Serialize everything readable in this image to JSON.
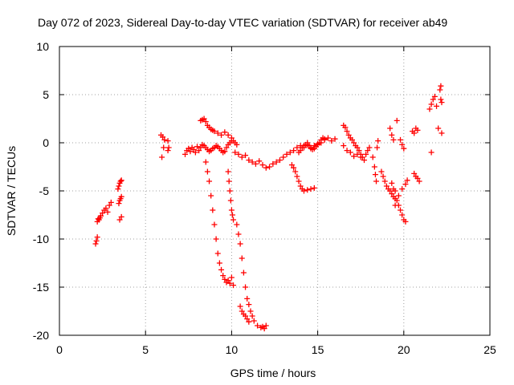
{
  "chart_data": {
    "type": "scatter",
    "title": "Day 072 of 2023, Sidereal Day-to-day VTEC variation (SDTVAR) for receiver ab49",
    "xlabel": "GPS time / hours",
    "ylabel": "SDTVAR / TECUs",
    "xlim": [
      0,
      25
    ],
    "ylim": [
      -20,
      10
    ],
    "xticks": [
      "0",
      "5",
      "10",
      "15",
      "20",
      "25"
    ],
    "yticks": [
      "-20",
      "-15",
      "-10",
      "-5",
      "0",
      "5",
      "10"
    ],
    "grid": true,
    "marker": "+",
    "series": [
      {
        "name": "SDTVAR",
        "color": "#ff0000",
        "x": [
          2.1,
          2.15,
          2.2,
          2.2,
          2.25,
          2.3,
          2.35,
          2.4,
          2.5,
          2.6,
          2.7,
          2.8,
          2.9,
          3.0,
          3.4,
          3.45,
          3.5,
          3.55,
          3.6,
          3.45,
          3.5,
          3.55,
          3.6,
          3.5,
          3.6,
          5.9,
          6.0,
          6.1,
          5.95,
          6.05,
          6.3,
          6.35,
          6.3,
          7.3,
          7.4,
          7.5,
          7.6,
          7.7,
          7.8,
          7.9,
          8.0,
          8.1,
          8.2,
          8.3,
          8.4,
          8.5,
          8.6,
          8.7,
          8.8,
          8.9,
          9.0,
          9.1,
          9.2,
          9.3,
          9.4,
          9.5,
          9.6,
          9.7,
          9.8,
          9.9,
          10.0,
          8.2,
          8.3,
          8.4,
          8.5,
          8.6,
          8.7,
          8.8,
          8.9,
          9.0,
          9.2,
          9.4,
          9.6,
          9.8,
          10.0,
          10.1,
          10.2,
          10.3,
          8.5,
          8.6,
          8.7,
          8.8,
          8.9,
          9.0,
          9.1,
          9.2,
          9.3,
          9.4,
          9.5,
          9.6,
          9.7,
          9.8,
          9.9,
          10.0,
          10.1,
          9.8,
          9.85,
          9.9,
          9.95,
          10.0,
          10.05,
          10.1,
          10.3,
          10.4,
          10.5,
          10.6,
          10.7,
          10.8,
          10.9,
          11.0,
          11.1,
          11.2,
          11.3,
          11.5,
          11.7,
          11.8,
          11.9,
          12.0,
          10.5,
          10.6,
          10.7,
          10.8,
          10.9,
          11.0,
          10.2,
          10.4,
          10.6,
          10.8,
          11.0,
          11.2,
          11.4,
          11.6,
          11.8,
          12.0,
          12.2,
          12.4,
          12.6,
          12.8,
          13.0,
          13.2,
          13.4,
          13.6,
          13.8,
          14.0,
          14.2,
          14.4,
          14.6,
          14.8,
          15.0,
          15.2,
          15.4,
          15.6,
          15.8,
          16.0,
          13.5,
          13.6,
          13.7,
          13.8,
          13.9,
          14.0,
          14.1,
          14.2,
          14.4,
          14.6,
          14.8,
          13.9,
          14.0,
          14.1,
          14.2,
          14.3,
          14.4,
          14.5,
          14.6,
          14.7,
          14.8,
          14.9,
          15.0,
          15.1,
          15.2,
          15.3,
          15.4,
          16.5,
          16.6,
          16.7,
          16.8,
          16.9,
          17.0,
          17.1,
          17.2,
          17.3,
          17.4,
          17.5,
          17.6,
          17.7,
          17.8,
          17.9,
          18.0,
          16.5,
          16.7,
          16.9,
          17.1,
          17.3,
          17.5,
          18.2,
          18.3,
          18.35,
          18.4,
          18.45,
          18.5,
          18.7,
          18.8,
          18.9,
          19.0,
          19.1,
          19.2,
          19.3,
          19.4,
          19.5,
          19.6,
          19.7,
          19.8,
          19.9,
          20.0,
          20.1,
          19.3,
          19.5,
          19.7,
          19.9,
          20.1,
          20.2,
          19.2,
          19.3,
          19.4,
          19.4,
          19.5,
          19.6,
          19.8,
          19.9,
          20.0,
          20.5,
          20.6,
          20.7,
          20.8,
          20.6,
          20.7,
          20.8,
          20.9,
          21.5,
          21.6,
          21.7,
          21.8,
          21.9,
          22.0,
          22.1,
          22.15,
          22.2,
          22.2,
          22.15,
          21.6
        ],
        "y": [
          -10.5,
          -10.2,
          -9.8,
          -8.2,
          -7.9,
          -8.0,
          -7.8,
          -7.6,
          -7.3,
          -7.0,
          -6.8,
          -7.2,
          -6.5,
          -6.2,
          -4.8,
          -4.5,
          -4.2,
          -4.0,
          -3.9,
          -6.3,
          -6.0,
          -5.8,
          -5.6,
          -8.0,
          -7.7,
          0.8,
          0.6,
          0.3,
          -1.5,
          -0.5,
          -0.8,
          -0.5,
          0.2,
          -1.2,
          -0.8,
          -0.6,
          -0.9,
          -0.5,
          -0.7,
          -1.0,
          -0.4,
          -0.8,
          -0.5,
          -0.2,
          -0.3,
          -0.5,
          -0.7,
          -0.9,
          -0.8,
          -0.6,
          -0.5,
          -0.3,
          -0.4,
          -0.6,
          -0.8,
          -1.0,
          -0.9,
          -0.5,
          -0.2,
          0.0,
          0.2,
          2.3,
          2.4,
          2.5,
          2.2,
          1.8,
          1.6,
          1.4,
          1.3,
          1.2,
          1.0,
          0.8,
          1.1,
          0.8,
          0.5,
          0.2,
          0.0,
          -0.2,
          -2.0,
          -3.0,
          -4.0,
          -5.5,
          -7.0,
          -8.5,
          -10.0,
          -11.5,
          -12.5,
          -13.2,
          -13.8,
          -14.2,
          -14.5,
          -14.3,
          -14.6,
          -14.0,
          -14.8,
          -3.0,
          -4.0,
          -5.0,
          -6.0,
          -7.0,
          -7.5,
          -8.0,
          -8.5,
          -9.5,
          -10.5,
          -12.0,
          -13.5,
          -15.0,
          -16.2,
          -16.8,
          -17.5,
          -18.0,
          -18.5,
          -19.0,
          -19.2,
          -19.1,
          -19.3,
          -19.0,
          -17.0,
          -17.5,
          -17.8,
          -18.0,
          -18.3,
          -18.6,
          -1.0,
          -1.2,
          -1.5,
          -1.3,
          -1.8,
          -2.0,
          -2.2,
          -1.9,
          -2.3,
          -2.6,
          -2.5,
          -2.2,
          -2.0,
          -1.8,
          -1.5,
          -1.2,
          -1.0,
          -0.8,
          -0.5,
          -0.3,
          -0.5,
          -0.2,
          -0.6,
          -0.3,
          -0.1,
          0.0,
          0.3,
          0.5,
          0.2,
          0.4,
          -2.3,
          -2.6,
          -3.0,
          -3.5,
          -4.0,
          -4.5,
          -4.8,
          -5.0,
          -4.9,
          -4.8,
          -4.7,
          -1.0,
          -0.8,
          -0.5,
          -0.3,
          -0.2,
          0.0,
          -0.3,
          -0.5,
          -0.7,
          -0.6,
          -0.4,
          -0.2,
          0.0,
          0.3,
          0.5,
          0.4,
          1.8,
          1.6,
          1.2,
          0.8,
          0.5,
          0.3,
          0.0,
          -0.3,
          -0.5,
          -0.8,
          -1.2,
          -1.5,
          -1.8,
          -1.2,
          -0.8,
          -0.5,
          -0.3,
          -0.8,
          -1.0,
          -1.4,
          -1.2,
          -1.5,
          -1.5,
          -2.5,
          -3.3,
          -4.0,
          -0.5,
          0.2,
          -3.0,
          -3.5,
          -4.0,
          -4.5,
          -4.8,
          -5.0,
          -5.3,
          -5.6,
          -5.8,
          -6.0,
          -6.5,
          -7.0,
          -7.5,
          -8.0,
          -8.2,
          -4.2,
          -5.0,
          -5.5,
          -4.8,
          -4.3,
          -3.9,
          1.5,
          0.8,
          0.3,
          -4.8,
          -6.5,
          2.3,
          0.3,
          -0.2,
          -0.6,
          1.2,
          1.0,
          1.5,
          1.3,
          -3.2,
          -3.5,
          -3.7,
          -4.0,
          3.5,
          4.0,
          4.5,
          4.8,
          3.8,
          1.5,
          5.5,
          5.9,
          4.2,
          1.0,
          4.5,
          -1.0
        ]
      }
    ]
  }
}
